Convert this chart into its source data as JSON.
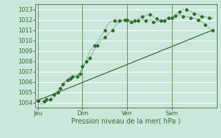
{
  "xlabel": "Pression niveau de la mer( hPa )",
  "bg_color": "#cce8dc",
  "grid_color": "#ffffff",
  "line_color": "#2d6b2d",
  "ylim": [
    1003.5,
    1013.5
  ],
  "yticks": [
    1004,
    1005,
    1006,
    1007,
    1008,
    1009,
    1010,
    1011,
    1012,
    1013
  ],
  "xtick_labels": [
    "Jeu",
    "Dim",
    "Ven",
    "Sam"
  ],
  "xtick_positions": [
    0,
    36,
    72,
    108
  ],
  "xlim": [
    -2,
    144
  ],
  "series1_x": [
    0,
    3,
    5,
    7,
    10,
    13,
    16,
    18,
    20,
    22,
    24,
    26,
    28,
    30,
    32,
    34,
    36,
    39,
    42,
    45,
    48,
    51,
    54,
    57,
    60,
    63,
    66,
    69,
    72,
    75,
    78,
    81,
    84,
    87,
    90,
    93,
    96,
    99,
    102,
    105,
    108,
    111,
    114,
    117,
    120,
    123,
    126,
    129,
    132,
    135,
    138,
    141
  ],
  "series1_y": [
    1004.2,
    1003.8,
    1004.1,
    1004.1,
    1004.3,
    1004.4,
    1005.0,
    1005.3,
    1005.8,
    1006.0,
    1006.2,
    1006.5,
    1006.5,
    1006.4,
    1006.5,
    1006.8,
    1007.5,
    1007.8,
    1008.3,
    1009.0,
    1009.5,
    1010.0,
    1010.3,
    1010.7,
    1011.0,
    1011.5,
    1011.9,
    1011.9,
    1012.0,
    1011.9,
    1011.9,
    1012.1,
    1012.3,
    1012.4,
    1012.5,
    1012.3,
    1012.1,
    1011.8,
    1011.9,
    1012.0,
    1012.2,
    1012.5,
    1012.8,
    1013.0,
    1013.0,
    1012.8,
    1012.6,
    1012.5,
    1012.3,
    1012.3,
    1012.2,
    1012.1
  ],
  "series2_x": [
    0,
    3,
    7,
    10,
    13,
    16,
    18,
    22,
    26,
    30,
    34,
    36,
    39,
    42,
    46,
    50,
    54,
    58,
    62,
    66,
    70,
    72,
    75,
    78,
    81,
    84,
    87,
    90,
    93,
    96,
    99,
    102,
    105,
    108,
    111,
    114,
    117,
    120,
    123,
    126,
    129,
    132,
    135,
    138,
    141
  ],
  "series2_y": [
    1004.2,
    1004.1,
    1004.3,
    1004.4,
    1004.8,
    1005.1,
    1005.4,
    1006.0,
    1006.3,
    1006.6,
    1006.8,
    1007.4,
    1008.0,
    1009.0,
    1009.5,
    1010.2,
    1011.0,
    1011.8,
    1011.9,
    1011.9,
    1012.0,
    1011.9,
    1011.8,
    1011.8,
    1011.9,
    1012.0,
    1011.9,
    1012.0,
    1011.8,
    1011.8,
    1011.9,
    1012.0,
    1012.2,
    1012.2,
    1012.4,
    1012.5,
    1012.3,
    1012.3,
    1012.2,
    1012.1,
    1012.0,
    1011.8,
    1011.5,
    1011.2,
    1011.0
  ],
  "trend_x": [
    0,
    141
  ],
  "trend_y": [
    1004.2,
    1011.0
  ]
}
